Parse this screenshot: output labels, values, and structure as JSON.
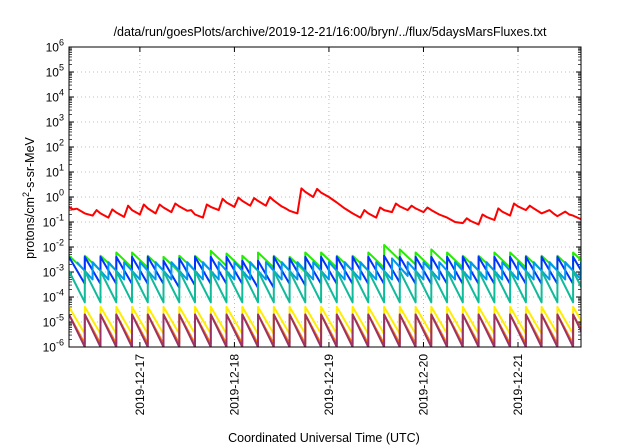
{
  "chart_data": {
    "type": "line",
    "title": "/data/run/goesPlots/archive/2019-12-21/16:00/bryn/../flux/5daysMarsFluxes.txt",
    "xlabel": "Coordinated Universal Time (UTC)",
    "ylabel": {
      "before": "protons/cm",
      "superscript": "2",
      "after": "-s-sr-MeV"
    },
    "y_scale": "log",
    "ylim": [
      1e-06,
      1000000.0
    ],
    "y_ticks": [
      {
        "value": 1e-06,
        "base": "10",
        "exp": "-6"
      },
      {
        "value": 1e-05,
        "base": "10",
        "exp": "-5"
      },
      {
        "value": 0.0001,
        "base": "10",
        "exp": "-4"
      },
      {
        "value": 0.001,
        "base": "10",
        "exp": "-3"
      },
      {
        "value": 0.01,
        "base": "10",
        "exp": "-2"
      },
      {
        "value": 0.1,
        "base": "10",
        "exp": "-1"
      },
      {
        "value": 1,
        "base": "10",
        "exp": "0"
      },
      {
        "value": 10,
        "base": "10",
        "exp": "1"
      },
      {
        "value": 100,
        "base": "10",
        "exp": "2"
      },
      {
        "value": 1000,
        "base": "10",
        "exp": "3"
      },
      {
        "value": 10000,
        "base": "10",
        "exp": "4"
      },
      {
        "value": 100000,
        "base": "10",
        "exp": "5"
      },
      {
        "value": 1000000,
        "base": "10",
        "exp": "6"
      }
    ],
    "xlim": [
      "2019-12-16T06:00",
      "2019-12-21T16:00"
    ],
    "x_ticks": [
      "2019-12-17",
      "2019-12-18",
      "2019-12-19",
      "2019-12-20",
      "2019-12-21"
    ],
    "grid": true,
    "legend": "none",
    "series": [
      {
        "color": "#ff0000",
        "x": [
          "2019-12-16T06:00",
          "2019-12-16T07:00",
          "2019-12-16T08:00",
          "2019-12-16T10:00",
          "2019-12-16T12:00",
          "2019-12-16T13:00",
          "2019-12-16T14:00",
          "2019-12-16T16:00",
          "2019-12-16T17:00",
          "2019-12-16T18:00",
          "2019-12-16T20:00",
          "2019-12-16T21:00",
          "2019-12-16T22:00",
          "2019-12-17T00:00",
          "2019-12-17T01:00",
          "2019-12-17T02:00",
          "2019-12-17T04:00",
          "2019-12-17T05:00",
          "2019-12-17T06:00",
          "2019-12-17T08:00",
          "2019-12-17T09:00",
          "2019-12-17T10:00",
          "2019-12-17T12:00",
          "2019-12-17T13:00",
          "2019-12-17T14:00",
          "2019-12-17T16:00",
          "2019-12-17T17:00",
          "2019-12-17T18:00",
          "2019-12-17T20:00",
          "2019-12-17T21:00",
          "2019-12-17T22:00",
          "2019-12-18T00:00",
          "2019-12-18T01:00",
          "2019-12-18T02:00",
          "2019-12-18T04:00",
          "2019-12-18T05:00",
          "2019-12-18T06:00",
          "2019-12-18T08:00",
          "2019-12-18T09:00",
          "2019-12-18T10:00",
          "2019-12-18T12:00",
          "2019-12-18T13:00",
          "2019-12-18T14:00",
          "2019-12-18T16:00",
          "2019-12-18T17:00",
          "2019-12-18T18:00",
          "2019-12-18T20:00",
          "2019-12-18T21:00",
          "2019-12-18T22:00",
          "2019-12-19T00:00",
          "2019-12-19T02:00",
          "2019-12-19T04:00",
          "2019-12-19T06:00",
          "2019-12-19T08:00",
          "2019-12-19T09:00",
          "2019-12-19T10:00",
          "2019-12-19T12:00",
          "2019-12-19T13:00",
          "2019-12-19T14:00",
          "2019-12-19T16:00",
          "2019-12-19T17:00",
          "2019-12-19T18:00",
          "2019-12-19T20:00",
          "2019-12-19T21:00",
          "2019-12-19T22:00",
          "2019-12-20T00:00",
          "2019-12-20T01:00",
          "2019-12-20T02:00",
          "2019-12-20T04:00",
          "2019-12-20T06:00",
          "2019-12-20T08:00",
          "2019-12-20T10:00",
          "2019-12-20T11:00",
          "2019-12-20T12:00",
          "2019-12-20T14:00",
          "2019-12-20T15:00",
          "2019-12-20T16:00",
          "2019-12-20T18:00",
          "2019-12-20T19:00",
          "2019-12-20T20:00",
          "2019-12-20T22:00",
          "2019-12-20T23:00",
          "2019-12-21T00:00",
          "2019-12-21T02:00",
          "2019-12-21T03:00",
          "2019-12-21T04:00",
          "2019-12-21T06:00",
          "2019-12-21T08:00",
          "2019-12-21T09:00",
          "2019-12-21T10:00",
          "2019-12-21T12:00",
          "2019-12-21T13:00",
          "2019-12-21T14:00",
          "2019-12-21T16:00"
        ],
        "values": [
          0.4,
          0.32,
          0.34,
          0.22,
          0.18,
          0.3,
          0.22,
          0.15,
          0.32,
          0.24,
          0.16,
          0.45,
          0.3,
          0.2,
          0.5,
          0.35,
          0.22,
          0.5,
          0.38,
          0.25,
          0.55,
          0.42,
          0.28,
          0.3,
          0.2,
          0.15,
          0.5,
          0.4,
          0.3,
          0.85,
          0.6,
          0.4,
          0.95,
          0.7,
          0.45,
          0.9,
          0.7,
          0.45,
          1.0,
          0.72,
          0.42,
          0.35,
          0.28,
          0.22,
          2.2,
          1.6,
          1.0,
          2.1,
          1.5,
          1.0,
          0.6,
          0.35,
          0.22,
          0.15,
          0.3,
          0.22,
          0.15,
          0.38,
          0.3,
          0.25,
          0.55,
          0.42,
          0.3,
          0.45,
          0.35,
          0.25,
          0.38,
          0.3,
          0.2,
          0.15,
          0.1,
          0.09,
          0.14,
          0.11,
          0.08,
          0.2,
          0.16,
          0.12,
          0.35,
          0.26,
          0.18,
          0.55,
          0.42,
          0.3,
          0.45,
          0.35,
          0.22,
          0.3,
          0.22,
          0.17,
          0.26,
          0.2,
          0.18,
          0.13
        ]
      },
      {
        "color": "#22ee00",
        "sawtooth": {
          "start": "2019-12-16T06:00",
          "period_hours": 4,
          "ratio": 4,
          "top": [
            0.0045,
            0.0045,
            0.0045,
            0.006,
            0.006,
            0.0045,
            0.004,
            0.0045,
            0.0045,
            0.007,
            0.0055,
            0.0045,
            0.006,
            0.0045,
            0.004,
            0.006,
            0.006,
            0.0045,
            0.0045,
            0.006,
            0.012,
            0.008,
            0.006,
            0.008,
            0.006,
            0.0045,
            0.0045,
            0.006,
            0.006,
            0.0045,
            0.0045,
            0.0045,
            0.006,
            0.008,
            0.006,
            0.006,
            0.0045,
            0.0045,
            0.0045,
            0.0045,
            0.0045,
            0.0045,
            0.0045,
            0.0045,
            0.0045,
            0.0045,
            0.0045,
            0.0045,
            0.0045,
            0.0045,
            0.0045,
            0.0045,
            0.0045,
            0.008,
            0.006,
            0.006,
            0.0045,
            0.0045
          ]
        }
      },
      {
        "color": "#0033ff",
        "sawtooth": {
          "start": "2019-12-16T06:00",
          "period_hours": 4,
          "ratio": 12,
          "top": [
            0.004,
            0.004,
            0.004,
            0.004,
            0.004,
            0.004,
            0.0028,
            0.0035,
            0.004,
            0.004,
            0.004,
            0.0028,
            0.0028,
            0.004,
            0.0035,
            0.004,
            0.004,
            0.004,
            0.004,
            0.004,
            0.0045,
            0.004,
            0.004,
            0.004,
            0.004,
            0.004,
            0.004,
            0.004,
            0.004,
            0.004,
            0.004,
            0.004,
            0.004,
            0.004,
            0.004,
            0.004,
            0.004,
            0.004,
            0.004,
            0.004,
            0.004,
            0.004,
            0.004,
            0.004,
            0.004,
            0.004,
            0.004,
            0.004,
            0.004,
            0.004,
            0.004,
            0.004,
            0.004,
            0.004,
            0.004,
            0.004,
            0.004,
            0.004
          ]
        }
      },
      {
        "color": "#0099ee",
        "sawtooth": {
          "start": "2019-12-16T08:00",
          "period_hours": 4,
          "ratio": 5,
          "top": [
            0.0025,
            0.0025,
            0.0025,
            0.0025,
            0.0025,
            0.0025,
            0.0025,
            0.0025,
            0.0025,
            0.0025,
            0.0025,
            0.0025,
            0.0025,
            0.0025,
            0.0025,
            0.0025,
            0.0025,
            0.0025,
            0.0025,
            0.0025,
            0.0035,
            0.0025,
            0.0025,
            0.0025,
            0.0025,
            0.0025,
            0.0025,
            0.0025,
            0.0025,
            0.0025,
            0.0025,
            0.0025,
            0.0025,
            0.0025,
            0.0025,
            0.0025,
            0.0025,
            0.0025,
            0.0025,
            0.0025,
            0.0025,
            0.0025,
            0.0025,
            0.0025,
            0.0025,
            0.0025,
            0.0025,
            0.0025,
            0.0025,
            0.0025,
            0.0025,
            0.0025,
            0.0025,
            0.0025,
            0.0025,
            0.0025,
            0.0025
          ]
        }
      },
      {
        "color": "#11bb99",
        "sawtooth": {
          "start": "2019-12-16T06:00",
          "period_hours": 4,
          "ratio": 18,
          "top": [
            0.0011,
            0.0011,
            0.0011,
            0.0011,
            0.0011,
            0.0011,
            0.0011,
            0.0011,
            0.0011,
            0.0011,
            0.0011,
            0.0011,
            0.0011,
            0.0011,
            0.0011,
            0.0011,
            0.0011,
            0.0011,
            0.0011,
            0.0011,
            0.0011,
            0.0011,
            0.0011,
            0.0011,
            0.0011,
            0.0011,
            0.0011,
            0.0011,
            0.0011,
            0.0011,
            0.0011,
            0.0011,
            0.0011,
            0.0011,
            0.0011,
            0.0011,
            0.0011,
            0.0011,
            0.0011,
            0.0011,
            0.0011,
            0.0011,
            0.0011,
            0.0011,
            0.0011,
            0.0011,
            0.0011,
            0.0011,
            0.0011,
            0.0011,
            0.0011,
            0.0011,
            0.0011,
            0.0011,
            0.0011,
            0.0011,
            0.0011,
            0.0011
          ]
        }
      },
      {
        "color": "#ffee00",
        "sawtooth": {
          "start": "2019-12-16T06:00",
          "period_hours": 4,
          "ratio": 12,
          "top": [
            4e-05,
            4e-05,
            4e-05,
            4e-05,
            4e-05,
            4e-05,
            4e-05,
            4e-05,
            4e-05,
            4e-05,
            4e-05,
            4e-05,
            4e-05,
            4e-05,
            4e-05,
            4e-05,
            4e-05,
            4e-05,
            4e-05,
            4e-05,
            4e-05,
            4e-05,
            4e-05,
            4e-05,
            4e-05,
            4e-05,
            4e-05,
            4e-05,
            4e-05,
            4e-05,
            4e-05,
            4e-05,
            4e-05,
            4e-05,
            4e-05,
            4e-05,
            4e-05,
            4e-05,
            4e-05,
            4e-05,
            4e-05,
            4e-05,
            4e-05,
            4e-05,
            4e-05,
            4e-05,
            4e-05,
            4e-05,
            4e-05,
            4e-05,
            4e-05,
            4e-05,
            4e-05,
            4e-05,
            4e-05,
            4e-05,
            4e-05,
            4e-05
          ]
        }
      },
      {
        "color": "#ff7700",
        "sawtooth": {
          "start": "2019-12-16T06:00",
          "period_hours": 4,
          "ratio": 15,
          "top": [
            2e-05,
            2e-05,
            2e-05,
            2e-05,
            2e-05,
            2e-05,
            2e-05,
            2e-05,
            2e-05,
            2e-05,
            2e-05,
            2e-05,
            2e-05,
            2e-05,
            2e-05,
            2e-05,
            2e-05,
            2e-05,
            2e-05,
            2e-05,
            2e-05,
            2e-05,
            2e-05,
            2e-05,
            2e-05,
            2e-05,
            2e-05,
            2e-05,
            2e-05,
            2e-05,
            2e-05,
            2e-05,
            2e-05,
            2e-05,
            2e-05,
            2e-05,
            2e-05,
            2e-05,
            2e-05,
            2e-05,
            2e-05,
            2e-05,
            2e-05,
            2e-05,
            2e-05,
            2e-05,
            2e-05,
            2e-05,
            2e-05,
            2e-05,
            2e-05,
            2e-05,
            2e-05,
            2e-05,
            2e-05,
            2e-05,
            2e-05,
            2e-05
          ]
        }
      },
      {
        "color": "#993366",
        "sawtooth": {
          "start": "2019-12-16T06:00",
          "period_hours": 4,
          "ratio": 20,
          "top": [
            2e-05,
            2e-05,
            2e-05,
            2e-05,
            2e-05,
            2e-05,
            2e-05,
            2e-05,
            2e-05,
            2e-05,
            2e-05,
            2e-05,
            2e-05,
            2e-05,
            2e-05,
            2e-05,
            2e-05,
            2e-05,
            2e-05,
            2e-05,
            2e-05,
            2e-05,
            2e-05,
            2e-05,
            2e-05,
            2e-05,
            2e-05,
            2e-05,
            2e-05,
            2e-05,
            2e-05,
            2e-05,
            2e-05,
            2e-05,
            2e-05,
            2e-05,
            2e-05,
            2e-05,
            2e-05,
            2e-05,
            2e-05,
            2e-05,
            2e-05,
            2e-05,
            2e-05,
            2e-05,
            2e-05,
            2e-05,
            2e-05,
            2e-05,
            2e-05,
            2e-05,
            2e-05,
            2e-05,
            2e-05,
            2e-05,
            2e-05,
            2e-05
          ]
        }
      }
    ]
  }
}
